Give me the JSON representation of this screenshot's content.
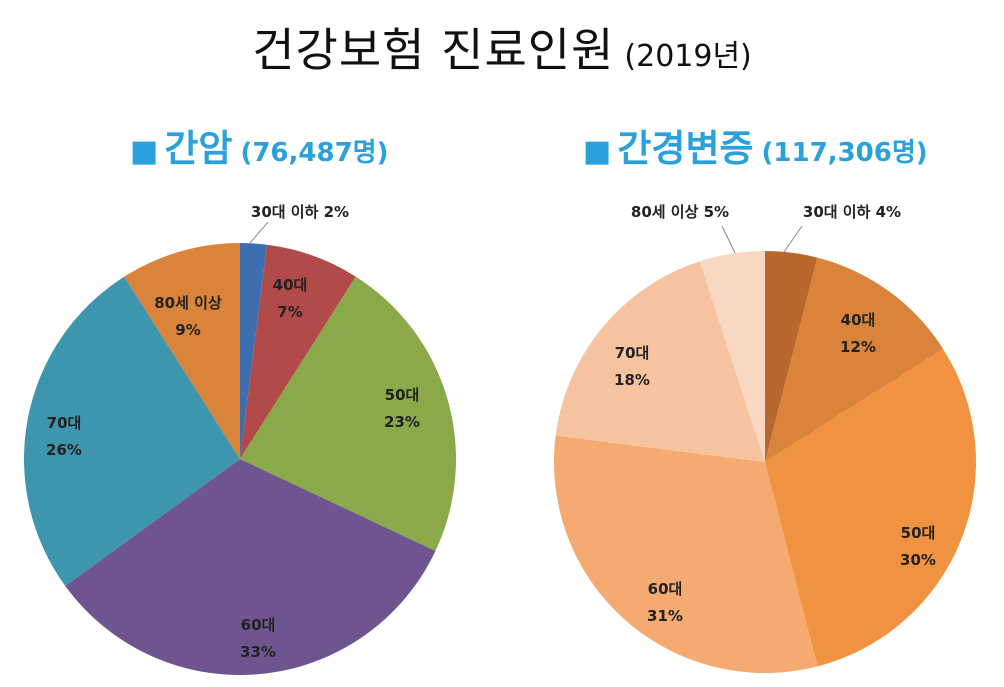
{
  "title": "건강보험 진료인원",
  "year": "(2019년)",
  "chart_data": [
    {
      "type": "pie",
      "title": "간암",
      "total": "(76,487명)",
      "colors": [
        "#3d6fb0",
        "#b24a4a",
        "#8aaa4a",
        "#6e5590",
        "#3e96ae",
        "#d9843a"
      ],
      "categories": [
        "30대 이하",
        "40대",
        "50대",
        "60대",
        "70대",
        "80세 이상"
      ],
      "values": [
        2,
        7,
        23,
        33,
        26,
        9
      ],
      "value_labels": [
        "2%",
        "7%",
        "23%",
        "33%",
        "26%",
        "9%"
      ]
    },
    {
      "type": "pie",
      "title": "간경변증",
      "total": "(117,306명)",
      "colors": [
        "#b8672d",
        "#d9843a",
        "#f0923f",
        "#f4aa70",
        "#f6c3a1",
        "#f9d8c3"
      ],
      "categories": [
        "30대 이하",
        "40대",
        "50대",
        "60대",
        "70대",
        "80세 이상"
      ],
      "values": [
        4,
        12,
        30,
        31,
        18,
        5
      ],
      "value_labels": [
        "4%",
        "12%",
        "30%",
        "31%",
        "18%",
        "5%"
      ]
    }
  ]
}
